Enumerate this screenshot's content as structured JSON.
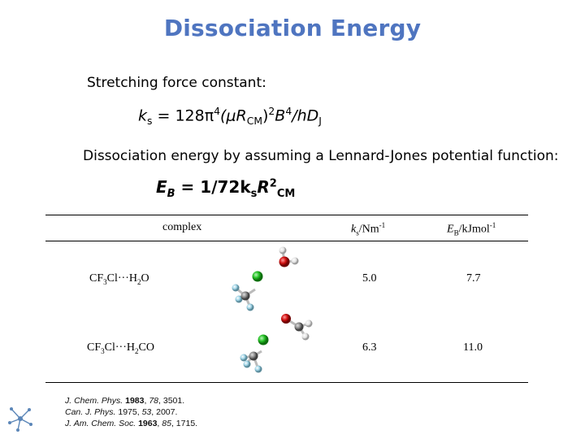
{
  "title": "Dissociation Energy",
  "stretching_label": "Stretching force constant:",
  "formula1": {
    "k": "k",
    "s": "s",
    "eq": " = 128π",
    "p4": "4",
    "mu": "(μR",
    "cm": "CM",
    "close": ")",
    "p2": "2",
    "B": "B",
    "b4": "4",
    "rest": "/hD",
    "J": "J"
  },
  "dissociation_label": "Dissociation energy by assuming a Lennard-Jones potential function:",
  "formula2": {
    "E": "E",
    "B": "B",
    "eq": " = 1/72k",
    "s": "s",
    "R": "R",
    "p2": "2",
    "cm": "CM"
  },
  "table": {
    "headers": {
      "complex": "complex",
      "ks_k": "k",
      "ks_s": "s",
      "ks_unit": "/Nm",
      "ks_exp": "-1",
      "eb_E": "E",
      "eb_B": "B",
      "eb_unit": "/kJmol",
      "eb_exp": "-1"
    },
    "rows": [
      {
        "name_a": "CF",
        "name_b": "3",
        "name_c": "Cl···H",
        "name_d": "2",
        "name_e": "O",
        "ks": "5.0",
        "eb": "7.7"
      },
      {
        "name_a": "CF",
        "name_b": "3",
        "name_c": "Cl···H",
        "name_d": "2",
        "name_e": "CO",
        "ks": "6.3",
        "eb": "11.0"
      }
    ]
  },
  "references": [
    {
      "journal": "J. Chem. Phys.",
      "year": "1983",
      "vol": "78",
      "page": "3501."
    },
    {
      "journal": "Can. J. Phys.",
      "year": "1975",
      "vol": "53",
      "page": "2007."
    },
    {
      "journal": "J. Am. Chem. Soc.",
      "year": "1963",
      "vol": "85",
      "page": "1715."
    }
  ],
  "colors": {
    "title": "#4f75c0",
    "chlorine": "#22c022",
    "oxygen": "#d01010",
    "carbon": "#8a8a8a",
    "fluorine": "#9fd4e6",
    "hydrogen": "#e8e8e8"
  }
}
